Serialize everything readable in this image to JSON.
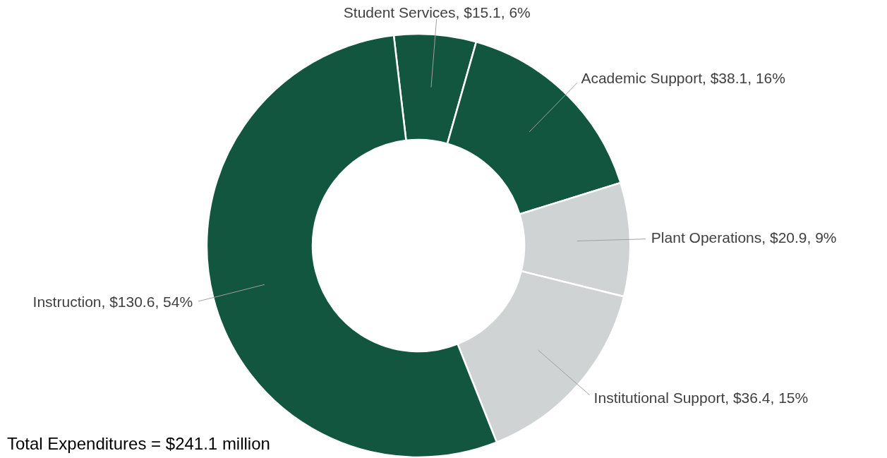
{
  "chart_data": {
    "type": "donut",
    "categories": [
      "Student Services",
      "Academic Support",
      "Plant Operations",
      "Institutional Support",
      "Instruction"
    ],
    "values": [
      15.1,
      38.1,
      20.9,
      36.4,
      130.6
    ],
    "value_labels": [
      "$15.1, 6%",
      "$38.1, 16%",
      "$20.9, 9%",
      "$36.4, 15%",
      "$130.6, 54%"
    ],
    "colors": [
      "#12563f",
      "#12563f",
      "#d0d3d4",
      "#d0d3d4",
      "#12563f"
    ],
    "annotations": [
      "Total Expenditures = $241.1 million"
    ]
  }
}
